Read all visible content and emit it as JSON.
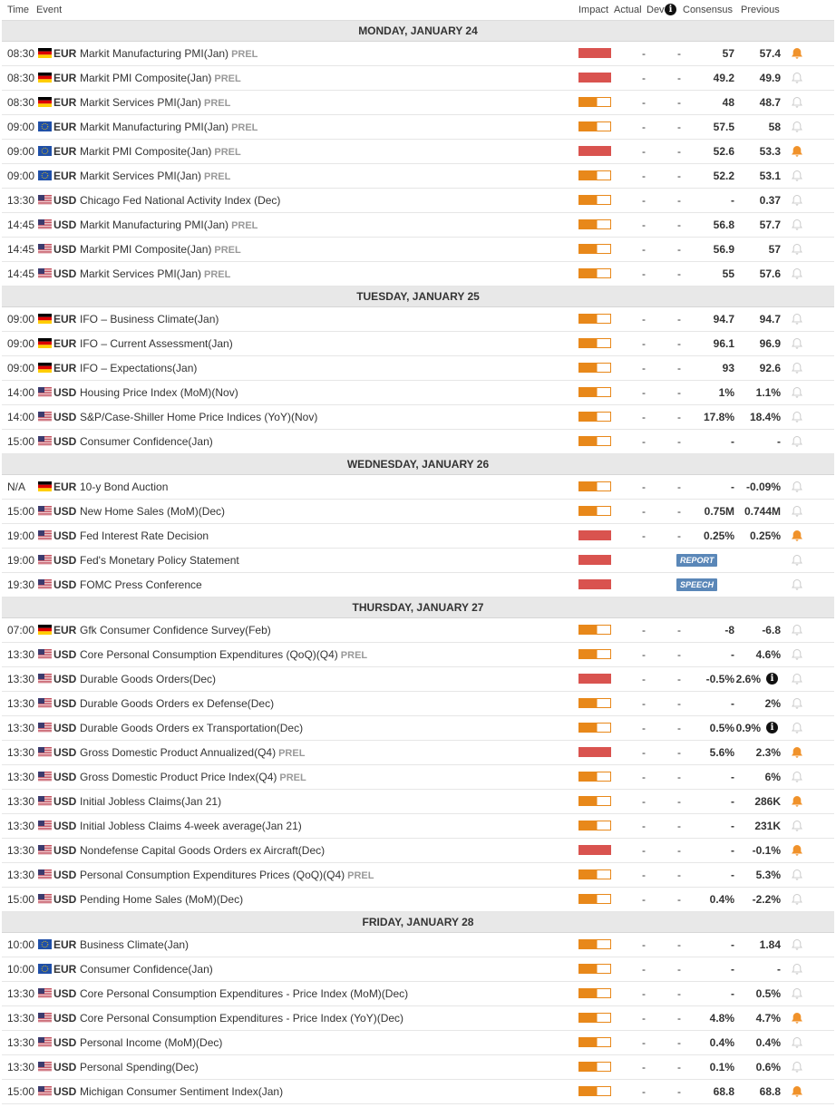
{
  "header": {
    "time": "Time",
    "event": "Event",
    "impact": "Impact",
    "actual": "Actual",
    "dev": "Dev",
    "consensus": "Consensus",
    "previous": "Previous",
    "dev_info_icon": "info-icon"
  },
  "colors": {
    "high_impact": "#d9534f",
    "medium_impact": "#e8881a",
    "bell_active": "#f0922b",
    "bell_inactive": "#cccccc",
    "badge": "#5a87b8"
  },
  "days": [
    {
      "title": "MONDAY, JANUARY 24",
      "events": [
        {
          "time": "08:30",
          "flag": "de",
          "currency": "EUR",
          "name": "Markit Manufacturing PMI(Jan)",
          "prel": "PREL",
          "impact": "high",
          "actual": "-",
          "dev": "-",
          "consensus": "57",
          "previous": "57.4",
          "bell": true
        },
        {
          "time": "08:30",
          "flag": "de",
          "currency": "EUR",
          "name": "Markit PMI Composite(Jan)",
          "prel": "PREL",
          "impact": "high",
          "actual": "-",
          "dev": "-",
          "consensus": "49.2",
          "previous": "49.9",
          "bell": false
        },
        {
          "time": "08:30",
          "flag": "de",
          "currency": "EUR",
          "name": "Markit Services PMI(Jan)",
          "prel": "PREL",
          "impact": "medium",
          "actual": "-",
          "dev": "-",
          "consensus": "48",
          "previous": "48.7",
          "bell": false
        },
        {
          "time": "09:00",
          "flag": "eu",
          "currency": "EUR",
          "name": "Markit Manufacturing PMI(Jan)",
          "prel": "PREL",
          "impact": "medium",
          "actual": "-",
          "dev": "-",
          "consensus": "57.5",
          "previous": "58",
          "bell": false
        },
        {
          "time": "09:00",
          "flag": "eu",
          "currency": "EUR",
          "name": "Markit PMI Composite(Jan)",
          "prel": "PREL",
          "impact": "high",
          "actual": "-",
          "dev": "-",
          "consensus": "52.6",
          "previous": "53.3",
          "bell": true
        },
        {
          "time": "09:00",
          "flag": "eu",
          "currency": "EUR",
          "name": "Markit Services PMI(Jan)",
          "prel": "PREL",
          "impact": "medium",
          "actual": "-",
          "dev": "-",
          "consensus": "52.2",
          "previous": "53.1",
          "bell": false
        },
        {
          "time": "13:30",
          "flag": "us",
          "currency": "USD",
          "name": "Chicago Fed National Activity Index (Dec)",
          "prel": "",
          "impact": "medium",
          "actual": "-",
          "dev": "-",
          "consensus": "-",
          "previous": "0.37",
          "bell": false
        },
        {
          "time": "14:45",
          "flag": "us",
          "currency": "USD",
          "name": "Markit Manufacturing PMI(Jan)",
          "prel": "PREL",
          "impact": "medium",
          "actual": "-",
          "dev": "-",
          "consensus": "56.8",
          "previous": "57.7",
          "bell": false
        },
        {
          "time": "14:45",
          "flag": "us",
          "currency": "USD",
          "name": "Markit PMI Composite(Jan)",
          "prel": "PREL",
          "impact": "medium",
          "actual": "-",
          "dev": "-",
          "consensus": "56.9",
          "previous": "57",
          "bell": false
        },
        {
          "time": "14:45",
          "flag": "us",
          "currency": "USD",
          "name": "Markit Services PMI(Jan)",
          "prel": "PREL",
          "impact": "medium",
          "actual": "-",
          "dev": "-",
          "consensus": "55",
          "previous": "57.6",
          "bell": false
        }
      ]
    },
    {
      "title": "TUESDAY, JANUARY 25",
      "events": [
        {
          "time": "09:00",
          "flag": "de",
          "currency": "EUR",
          "name": "IFO – Business Climate(Jan)",
          "prel": "",
          "impact": "medium",
          "actual": "-",
          "dev": "-",
          "consensus": "94.7",
          "previous": "94.7",
          "bell": false
        },
        {
          "time": "09:00",
          "flag": "de",
          "currency": "EUR",
          "name": "IFO – Current Assessment(Jan)",
          "prel": "",
          "impact": "medium",
          "actual": "-",
          "dev": "-",
          "consensus": "96.1",
          "previous": "96.9",
          "bell": false
        },
        {
          "time": "09:00",
          "flag": "de",
          "currency": "EUR",
          "name": "IFO – Expectations(Jan)",
          "prel": "",
          "impact": "medium",
          "actual": "-",
          "dev": "-",
          "consensus": "93",
          "previous": "92.6",
          "bell": false
        },
        {
          "time": "14:00",
          "flag": "us",
          "currency": "USD",
          "name": "Housing Price Index (MoM)(Nov)",
          "prel": "",
          "impact": "medium",
          "actual": "-",
          "dev": "-",
          "consensus": "1%",
          "previous": "1.1%",
          "bell": false
        },
        {
          "time": "14:00",
          "flag": "us",
          "currency": "USD",
          "name": "S&P/Case-Shiller Home Price Indices (YoY)(Nov)",
          "prel": "",
          "impact": "medium",
          "actual": "-",
          "dev": "-",
          "consensus": "17.8%",
          "previous": "18.4%",
          "bell": false
        },
        {
          "time": "15:00",
          "flag": "us",
          "currency": "USD",
          "name": "Consumer Confidence(Jan)",
          "prel": "",
          "impact": "medium",
          "actual": "-",
          "dev": "-",
          "consensus": "-",
          "previous": "-",
          "bell": false
        }
      ]
    },
    {
      "title": "WEDNESDAY, JANUARY 26",
      "events": [
        {
          "time": "N/A",
          "flag": "de",
          "currency": "EUR",
          "name": "10-y Bond Auction",
          "prel": "",
          "impact": "medium",
          "actual": "-",
          "dev": "-",
          "consensus": "-",
          "previous": "-0.09%",
          "bell": false
        },
        {
          "time": "15:00",
          "flag": "us",
          "currency": "USD",
          "name": "New Home Sales (MoM)(Dec)",
          "prel": "",
          "impact": "medium",
          "actual": "-",
          "dev": "-",
          "consensus": "0.75M",
          "previous": "0.744M",
          "bell": false
        },
        {
          "time": "19:00",
          "flag": "us",
          "currency": "USD",
          "name": "Fed Interest Rate Decision",
          "prel": "",
          "impact": "high",
          "actual": "-",
          "dev": "-",
          "consensus": "0.25%",
          "previous": "0.25%",
          "bell": true
        },
        {
          "time": "19:00",
          "flag": "us",
          "currency": "USD",
          "name": "Fed's Monetary Policy Statement",
          "prel": "",
          "impact": "high",
          "badge": "REPORT",
          "bell": false
        },
        {
          "time": "19:30",
          "flag": "us",
          "currency": "USD",
          "name": "FOMC Press Conference",
          "prel": "",
          "impact": "high",
          "badge": "SPEECH",
          "bell": false
        }
      ]
    },
    {
      "title": "THURSDAY, JANUARY 27",
      "events": [
        {
          "time": "07:00",
          "flag": "de",
          "currency": "EUR",
          "name": "Gfk Consumer Confidence Survey(Feb)",
          "prel": "",
          "impact": "medium",
          "actual": "-",
          "dev": "-",
          "consensus": "-8",
          "previous": "-6.8",
          "bell": false
        },
        {
          "time": "13:30",
          "flag": "us",
          "currency": "USD",
          "name": "Core Personal Consumption Expenditures (QoQ)(Q4)",
          "prel": "PREL",
          "impact": "medium",
          "actual": "-",
          "dev": "-",
          "consensus": "-",
          "previous": "4.6%",
          "bell": false
        },
        {
          "time": "13:30",
          "flag": "us",
          "currency": "USD",
          "name": "Durable Goods Orders(Dec)",
          "prel": "",
          "impact": "high",
          "actual": "-",
          "dev": "-",
          "consensus": "-0.5%",
          "previous": "2.6%",
          "info": true,
          "bell": false
        },
        {
          "time": "13:30",
          "flag": "us",
          "currency": "USD",
          "name": "Durable Goods Orders ex Defense(Dec)",
          "prel": "",
          "impact": "medium",
          "actual": "-",
          "dev": "-",
          "consensus": "-",
          "previous": "2%",
          "bell": false
        },
        {
          "time": "13:30",
          "flag": "us",
          "currency": "USD",
          "name": "Durable Goods Orders ex Transportation(Dec)",
          "prel": "",
          "impact": "medium",
          "actual": "-",
          "dev": "-",
          "consensus": "0.5%",
          "previous": "0.9%",
          "info": true,
          "bell": false
        },
        {
          "time": "13:30",
          "flag": "us",
          "currency": "USD",
          "name": "Gross Domestic Product Annualized(Q4)",
          "prel": "PREL",
          "impact": "high",
          "actual": "-",
          "dev": "-",
          "consensus": "5.6%",
          "previous": "2.3%",
          "bell": true
        },
        {
          "time": "13:30",
          "flag": "us",
          "currency": "USD",
          "name": "Gross Domestic Product Price Index(Q4)",
          "prel": "PREL",
          "impact": "medium",
          "actual": "-",
          "dev": "-",
          "consensus": "-",
          "previous": "6%",
          "bell": false
        },
        {
          "time": "13:30",
          "flag": "us",
          "currency": "USD",
          "name": "Initial Jobless Claims(Jan 21)",
          "prel": "",
          "impact": "medium",
          "actual": "-",
          "dev": "-",
          "consensus": "-",
          "previous": "286K",
          "bell": true
        },
        {
          "time": "13:30",
          "flag": "us",
          "currency": "USD",
          "name": "Initial Jobless Claims 4-week average(Jan 21)",
          "prel": "",
          "impact": "medium",
          "actual": "-",
          "dev": "-",
          "consensus": "-",
          "previous": "231K",
          "bell": false
        },
        {
          "time": "13:30",
          "flag": "us",
          "currency": "USD",
          "name": "Nondefense Capital Goods Orders ex Aircraft(Dec)",
          "prel": "",
          "impact": "high",
          "actual": "-",
          "dev": "-",
          "consensus": "-",
          "previous": "-0.1%",
          "bell": true
        },
        {
          "time": "13:30",
          "flag": "us",
          "currency": "USD",
          "name": "Personal Consumption Expenditures Prices (QoQ)(Q4)",
          "prel": "PREL",
          "impact": "medium",
          "actual": "-",
          "dev": "-",
          "consensus": "-",
          "previous": "5.3%",
          "bell": false
        },
        {
          "time": "15:00",
          "flag": "us",
          "currency": "USD",
          "name": "Pending Home Sales (MoM)(Dec)",
          "prel": "",
          "impact": "medium",
          "actual": "-",
          "dev": "-",
          "consensus": "0.4%",
          "previous": "-2.2%",
          "bell": false
        }
      ]
    },
    {
      "title": "FRIDAY, JANUARY 28",
      "events": [
        {
          "time": "10:00",
          "flag": "eu",
          "currency": "EUR",
          "name": "Business Climate(Jan)",
          "prel": "",
          "impact": "medium",
          "actual": "-",
          "dev": "-",
          "consensus": "-",
          "previous": "1.84",
          "bell": false
        },
        {
          "time": "10:00",
          "flag": "eu",
          "currency": "EUR",
          "name": "Consumer Confidence(Jan)",
          "prel": "",
          "impact": "medium",
          "actual": "-",
          "dev": "-",
          "consensus": "-",
          "previous": "-",
          "bell": false
        },
        {
          "time": "13:30",
          "flag": "us",
          "currency": "USD",
          "name": "Core Personal Consumption Expenditures - Price Index (MoM)(Dec)",
          "prel": "",
          "impact": "medium",
          "actual": "-",
          "dev": "-",
          "consensus": "-",
          "previous": "0.5%",
          "bell": false
        },
        {
          "time": "13:30",
          "flag": "us",
          "currency": "USD",
          "name": "Core Personal Consumption Expenditures - Price Index (YoY)(Dec)",
          "prel": "",
          "impact": "medium",
          "actual": "-",
          "dev": "-",
          "consensus": "4.8%",
          "previous": "4.7%",
          "bell": true
        },
        {
          "time": "13:30",
          "flag": "us",
          "currency": "USD",
          "name": "Personal Income (MoM)(Dec)",
          "prel": "",
          "impact": "medium",
          "actual": "-",
          "dev": "-",
          "consensus": "0.4%",
          "previous": "0.4%",
          "bell": false
        },
        {
          "time": "13:30",
          "flag": "us",
          "currency": "USD",
          "name": "Personal Spending(Dec)",
          "prel": "",
          "impact": "medium",
          "actual": "-",
          "dev": "-",
          "consensus": "0.1%",
          "previous": "0.6%",
          "bell": false
        },
        {
          "time": "15:00",
          "flag": "us",
          "currency": "USD",
          "name": "Michigan Consumer Sentiment Index(Jan)",
          "prel": "",
          "impact": "medium",
          "actual": "-",
          "dev": "-",
          "consensus": "68.8",
          "previous": "68.8",
          "bell": true
        }
      ]
    }
  ]
}
